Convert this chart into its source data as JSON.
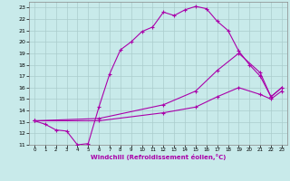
{
  "xlabel": "Windchill (Refroidissement éolien,°C)",
  "bg_color": "#c8eaea",
  "grid_color": "#aacccc",
  "line_color": "#aa00aa",
  "xlim": [
    -0.5,
    23.5
  ],
  "ylim": [
    11,
    23.5
  ],
  "xticks": [
    0,
    1,
    2,
    3,
    4,
    5,
    6,
    7,
    8,
    9,
    10,
    11,
    12,
    13,
    14,
    15,
    16,
    17,
    18,
    19,
    20,
    21,
    22,
    23
  ],
  "yticks": [
    11,
    12,
    13,
    14,
    15,
    16,
    17,
    18,
    19,
    20,
    21,
    22,
    23
  ],
  "line1_x": [
    0,
    1,
    2,
    3,
    4,
    5,
    6,
    7,
    8,
    9,
    10,
    11,
    12,
    13,
    14,
    15,
    16,
    17,
    18,
    19,
    20,
    21,
    22,
    23
  ],
  "line1_y": [
    13.1,
    12.8,
    12.3,
    12.2,
    11.0,
    11.1,
    14.3,
    17.2,
    19.3,
    20.0,
    20.9,
    21.3,
    22.6,
    22.3,
    22.8,
    23.1,
    22.9,
    21.8,
    21.0,
    19.2,
    18.0,
    17.0,
    15.2,
    16.0
  ],
  "line2_x": [
    0,
    6,
    12,
    15,
    17,
    19,
    21,
    22,
    23
  ],
  "line2_y": [
    13.1,
    13.3,
    14.5,
    15.7,
    17.5,
    19.0,
    17.3,
    15.2,
    16.0
  ],
  "line3_x": [
    0,
    6,
    12,
    15,
    17,
    19,
    21,
    22,
    23
  ],
  "line3_y": [
    13.1,
    13.1,
    13.8,
    14.3,
    15.2,
    16.0,
    15.4,
    15.0,
    15.7
  ]
}
